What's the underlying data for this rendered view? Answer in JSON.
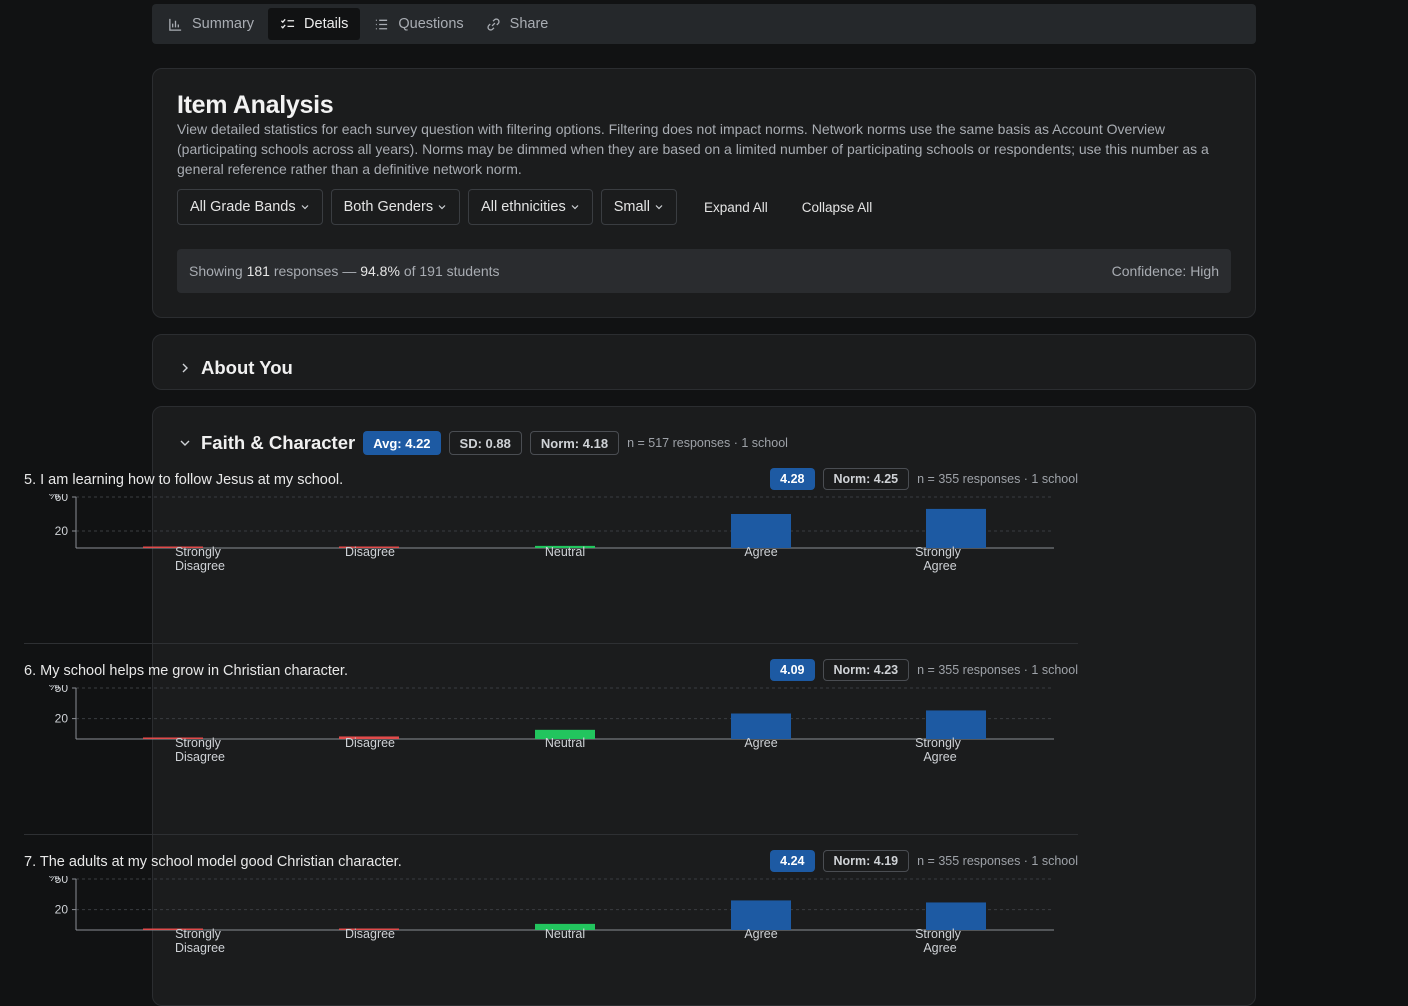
{
  "tabs": [
    {
      "label": "Summary",
      "icon": "bar-chart-icon"
    },
    {
      "label": "Details",
      "icon": "checklist-icon"
    },
    {
      "label": "Questions",
      "icon": "list-icon"
    },
    {
      "label": "Share",
      "icon": "link-icon"
    }
  ],
  "analysis": {
    "title": "Item Analysis",
    "description": "View detailed statistics for each survey question with filtering options. Filtering does not impact norms. Network norms use the same basis as Account Overview (participating schools across all years). Norms may be dimmed when they are based on a limited number of participating schools or respondents; use this number as a general reference rather than a definitive network norm.",
    "filters": {
      "grade": "All Grade Bands",
      "gender": "Both Genders",
      "ethnicity": "All ethnicities",
      "size": "Small",
      "expand": "Expand All",
      "collapse": "Collapse All"
    },
    "showing": {
      "prefix": "Showing",
      "count": "181",
      "mid": "responses —",
      "pct": "94.8%",
      "suffix": "of 191 students",
      "confidence": "Confidence: High"
    }
  },
  "sections": {
    "about": {
      "title": "About You"
    },
    "faith": {
      "title": "Faith & Character",
      "avg": "Avg: 4.22",
      "sd": "SD: 0.88",
      "norm": "Norm: 4.18",
      "n": "n = 517 responses · 1 school"
    }
  },
  "questions": [
    {
      "text": "5.  I am learning how to follow Jesus at my school.",
      "score": "4.28",
      "norm": "Norm: 4.25",
      "n": "n = 355 responses · 1 school"
    },
    {
      "text": "6.  My school helps me grow in Christian character.",
      "score": "4.09",
      "norm": "Norm: 4.23",
      "n": "n = 355 responses · 1 school"
    },
    {
      "text": "7.  The adults at my school model good Christian character.",
      "score": "4.24",
      "norm": "Norm: 4.19",
      "n": "n = 355 responses · 1 school"
    }
  ],
  "colors": {
    "negative": "#e04b4b",
    "neutral": "#22c55e",
    "positive": "#1d5aa3",
    "accent": "#1d5aa3"
  },
  "chart_data": [
    {
      "type": "bar",
      "ylabel": "%",
      "categories": [
        "Strongly Disagree",
        "Disagree",
        "Neutral",
        "Agree",
        "Strongly Agree"
      ],
      "values": [
        0.3,
        1.5,
        2.5,
        40,
        46
      ],
      "yticks": [
        20,
        60
      ],
      "ylim": [
        0,
        60
      ],
      "grid": true
    },
    {
      "type": "bar",
      "ylabel": "%",
      "categories": [
        "Strongly Disagree",
        "Disagree",
        "Neutral",
        "Agree",
        "Strongly Agree"
      ],
      "values": [
        1.5,
        2.5,
        9,
        25,
        28
      ],
      "yticks": [
        20,
        50
      ],
      "ylim": [
        0,
        50
      ],
      "grid": true
    },
    {
      "type": "bar",
      "ylabel": "%",
      "categories": [
        "Strongly Disagree",
        "Disagree",
        "Neutral",
        "Agree",
        "Strongly Agree"
      ],
      "values": [
        1,
        1,
        6,
        29,
        27
      ],
      "yticks": [
        20,
        50
      ],
      "ylim": [
        0,
        50
      ],
      "grid": true
    }
  ]
}
